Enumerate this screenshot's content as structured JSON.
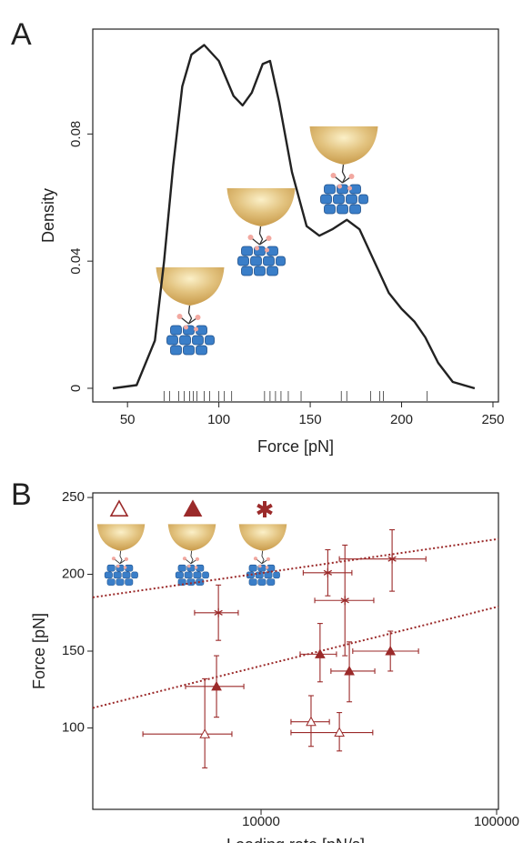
{
  "chart_data": [
    {
      "type": "line",
      "label": "A",
      "xlabel": "Force [pN]",
      "ylabel": "Density",
      "color": "#222222",
      "x": [
        42,
        55,
        65,
        70,
        75,
        80,
        85,
        92,
        100,
        108,
        113,
        118,
        124,
        128,
        133,
        140,
        148,
        155,
        162,
        170,
        177,
        185,
        193,
        200,
        207,
        213,
        220,
        228,
        240
      ],
      "values": [
        0,
        0.001,
        0.015,
        0.04,
        0.07,
        0.095,
        0.105,
        0.108,
        0.103,
        0.092,
        0.089,
        0.093,
        0.102,
        0.103,
        0.09,
        0.068,
        0.051,
        0.048,
        0.05,
        0.053,
        0.05,
        0.04,
        0.03,
        0.025,
        0.021,
        0.016,
        0.008,
        0.002,
        0
      ],
      "rug": [
        70,
        73,
        78,
        81,
        84,
        86,
        88,
        92,
        95,
        100,
        103,
        107,
        125,
        128,
        131,
        134,
        138,
        145,
        167,
        170,
        183,
        188,
        190,
        214
      ],
      "xlim": [
        31,
        253
      ],
      "ylim": [
        -0.0043,
        0.113
      ],
      "xticks": [
        50,
        100,
        150,
        200,
        250
      ],
      "yticks": [
        0,
        0.04,
        0.08
      ]
    },
    {
      "type": "scatter",
      "label": "B",
      "xlabel": "Loading rate [pN/s]",
      "ylabel": "Force [pN]",
      "xscale": "log",
      "color": "#9b2a2a",
      "xlim": [
        1930,
        101800
      ],
      "ylim": [
        47,
        253
      ],
      "xticks": [
        10000,
        100000
      ],
      "yticks": [
        100,
        150,
        200,
        250
      ],
      "series": [
        {
          "marker": "triangle-open",
          "x": [
            5770,
            16300,
            21500
          ],
          "values": [
            96,
            104,
            97
          ],
          "x_low": [
            3150,
            13400,
            13400
          ],
          "x_high": [
            7520,
            19500,
            29800
          ],
          "y_low": [
            74,
            88,
            85
          ],
          "y_high": [
            132,
            121,
            110
          ]
        },
        {
          "marker": "triangle",
          "x": [
            6470,
            17800,
            23700,
            35400
          ],
          "values": [
            127,
            148,
            137,
            150
          ],
          "x_low": [
            4780,
            14650,
            19800,
            24500
          ],
          "x_high": [
            8450,
            20900,
            30400,
            46600
          ],
          "y_low": [
            107,
            130,
            117,
            137
          ],
          "y_high": [
            147,
            168,
            156,
            163
          ]
        },
        {
          "marker": "asterisk",
          "x": [
            6590,
            19200,
            22700,
            36000
          ],
          "values": [
            175,
            201,
            183,
            210
          ],
          "x_low": [
            5220,
            15100,
            16900,
            21500
          ],
          "x_high": [
            8000,
            24300,
            30100,
            50100
          ],
          "y_low": [
            157,
            186,
            147,
            189
          ],
          "y_high": [
            193,
            216,
            219,
            229
          ]
        }
      ],
      "fits": [
        {
          "x": [
            1930,
            101800
          ],
          "values": [
            113,
            179
          ]
        },
        {
          "x": [
            1930,
            101800
          ],
          "values": [
            185,
            223
          ]
        }
      ]
    }
  ]
}
